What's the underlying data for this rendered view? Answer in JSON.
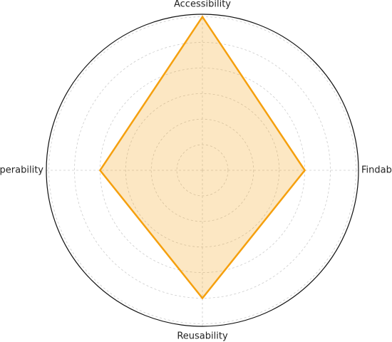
{
  "chart_data": {
    "type": "radar",
    "categories": [
      "Findability",
      "Accessibility",
      "Interoperability",
      "Reusability"
    ],
    "values": [
      4,
      6,
      4,
      5
    ],
    "color": "#f5a00e",
    "rlim": [
      0,
      6.1
    ],
    "rticks": [
      1,
      2,
      3,
      4,
      5,
      6
    ],
    "grid": true
  }
}
